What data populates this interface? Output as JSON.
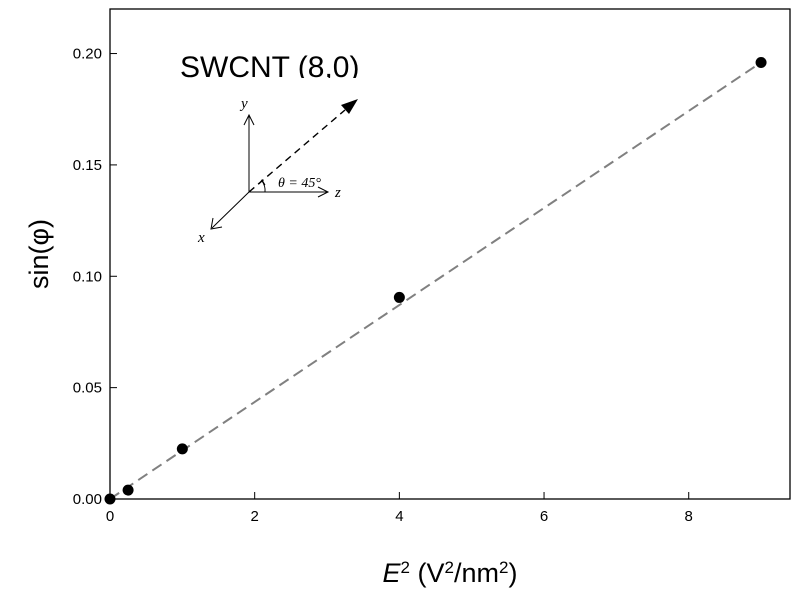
{
  "chart_data": {
    "type": "scatter",
    "title": "SWCNT (8,0)",
    "xlabel": {
      "base": "E",
      "sup": "2",
      "units_open": " (V",
      "units_sup1": "2",
      "units_mid": "/nm",
      "units_sup2": "2",
      "units_close": ")"
    },
    "ylabel": "sin(φ)",
    "xlim": [
      0,
      9.4
    ],
    "ylim": [
      0,
      0.22
    ],
    "x_ticks": [
      "0",
      "2",
      "4",
      "6",
      "8"
    ],
    "y_ticks": [
      "0.00",
      "0.05",
      "0.10",
      "0.15",
      "0.20"
    ],
    "grid": false,
    "series": [
      {
        "marker": "filled-circle",
        "color": "#000000",
        "x": [
          0,
          0.25,
          1,
          4,
          9
        ],
        "y": [
          0.0,
          0.004,
          0.0225,
          0.0905,
          0.196
        ]
      }
    ],
    "fit_line": {
      "style": "dashed",
      "color": "#808080",
      "x": [
        0,
        9
      ],
      "y": [
        0.0,
        0.196
      ]
    },
    "inset": {
      "axis_y": "y",
      "axis_z": "z",
      "axis_x": "x",
      "angle_label": "θ = 45°"
    }
  }
}
